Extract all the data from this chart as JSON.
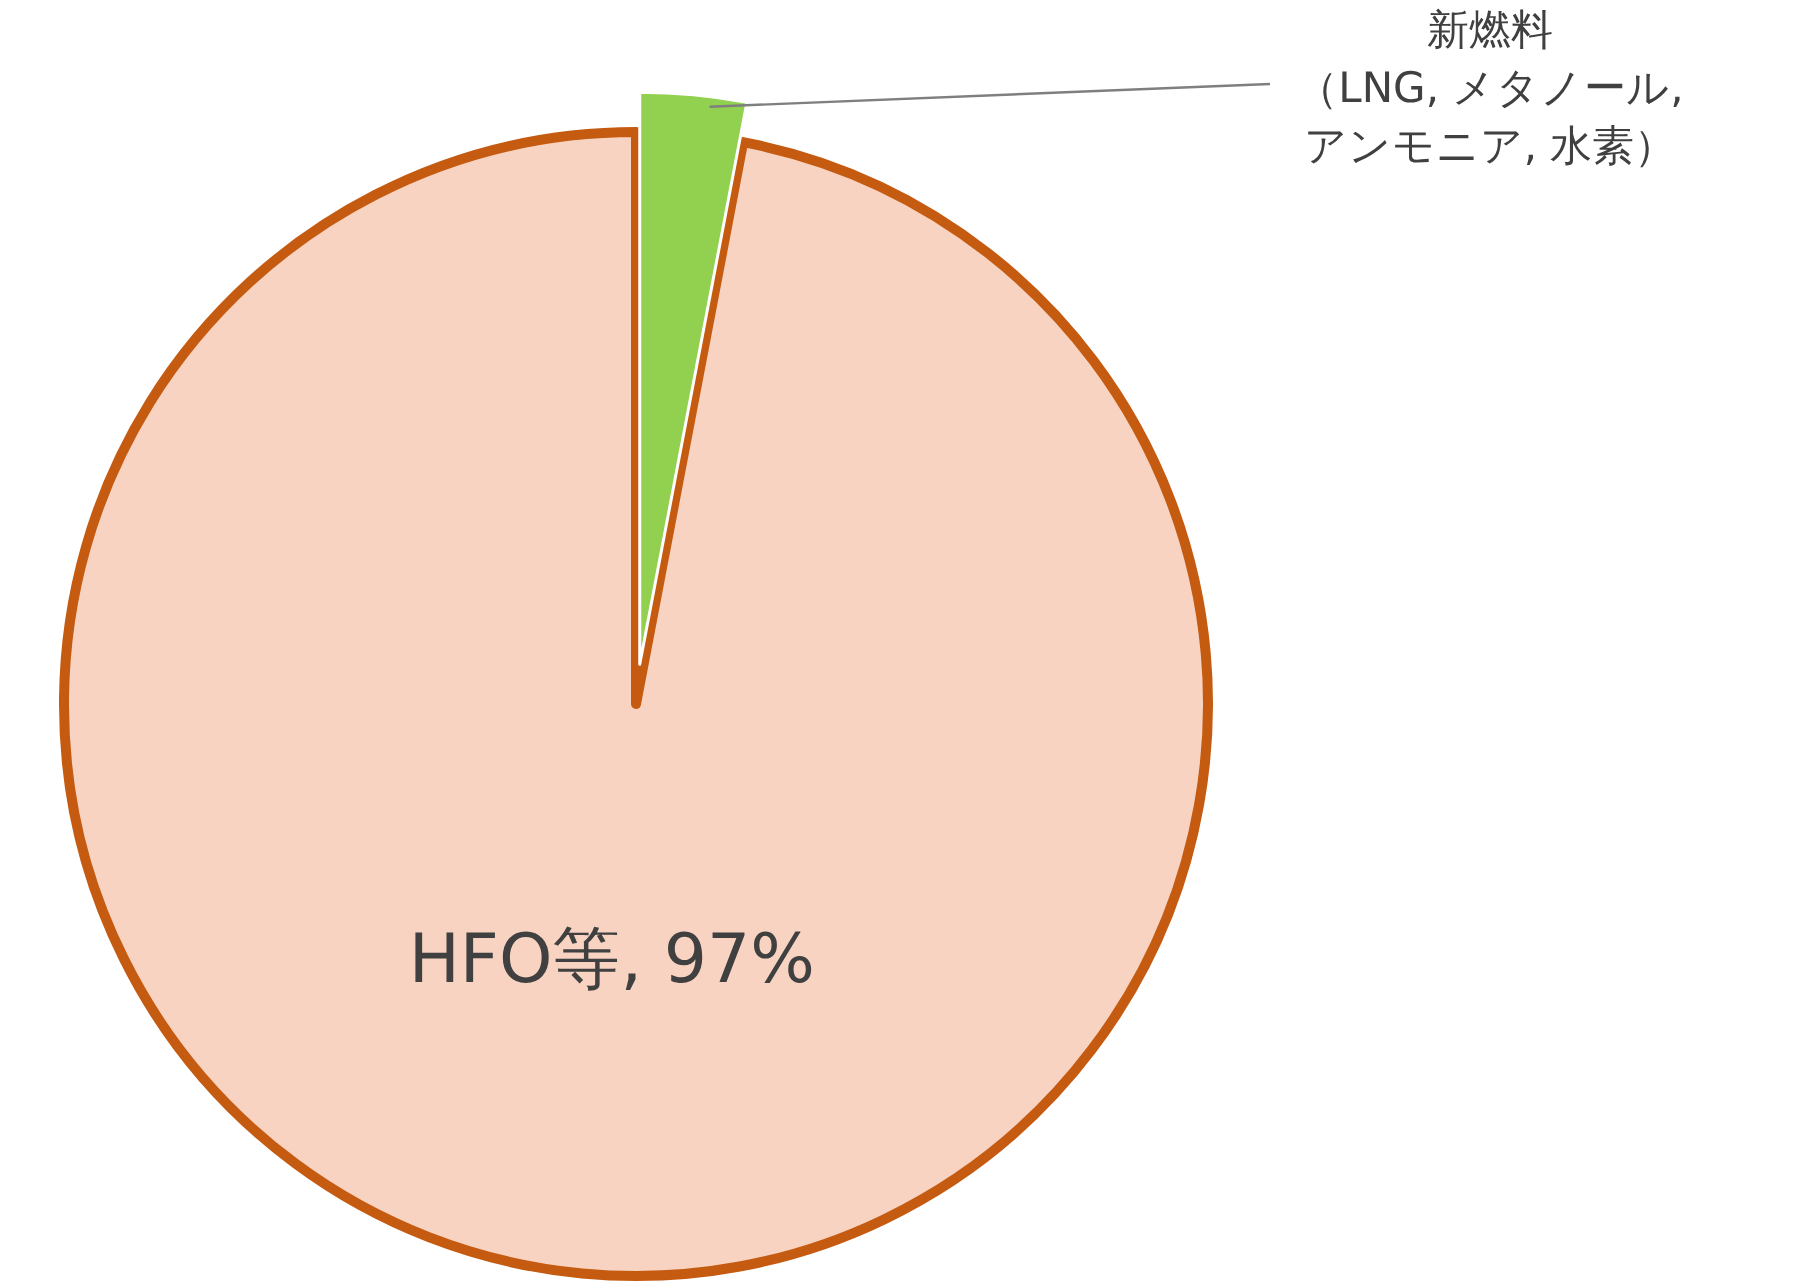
{
  "chart_data": {
    "type": "pie",
    "categories": [
      "HFO等",
      "新燃料（LNG, メタノール, アンモニア, 水素）"
    ],
    "values": [
      97,
      3
    ],
    "colors": [
      "#f8d3c1",
      "#92d050"
    ],
    "value_labels": [
      "97%",
      null
    ]
  }
}
